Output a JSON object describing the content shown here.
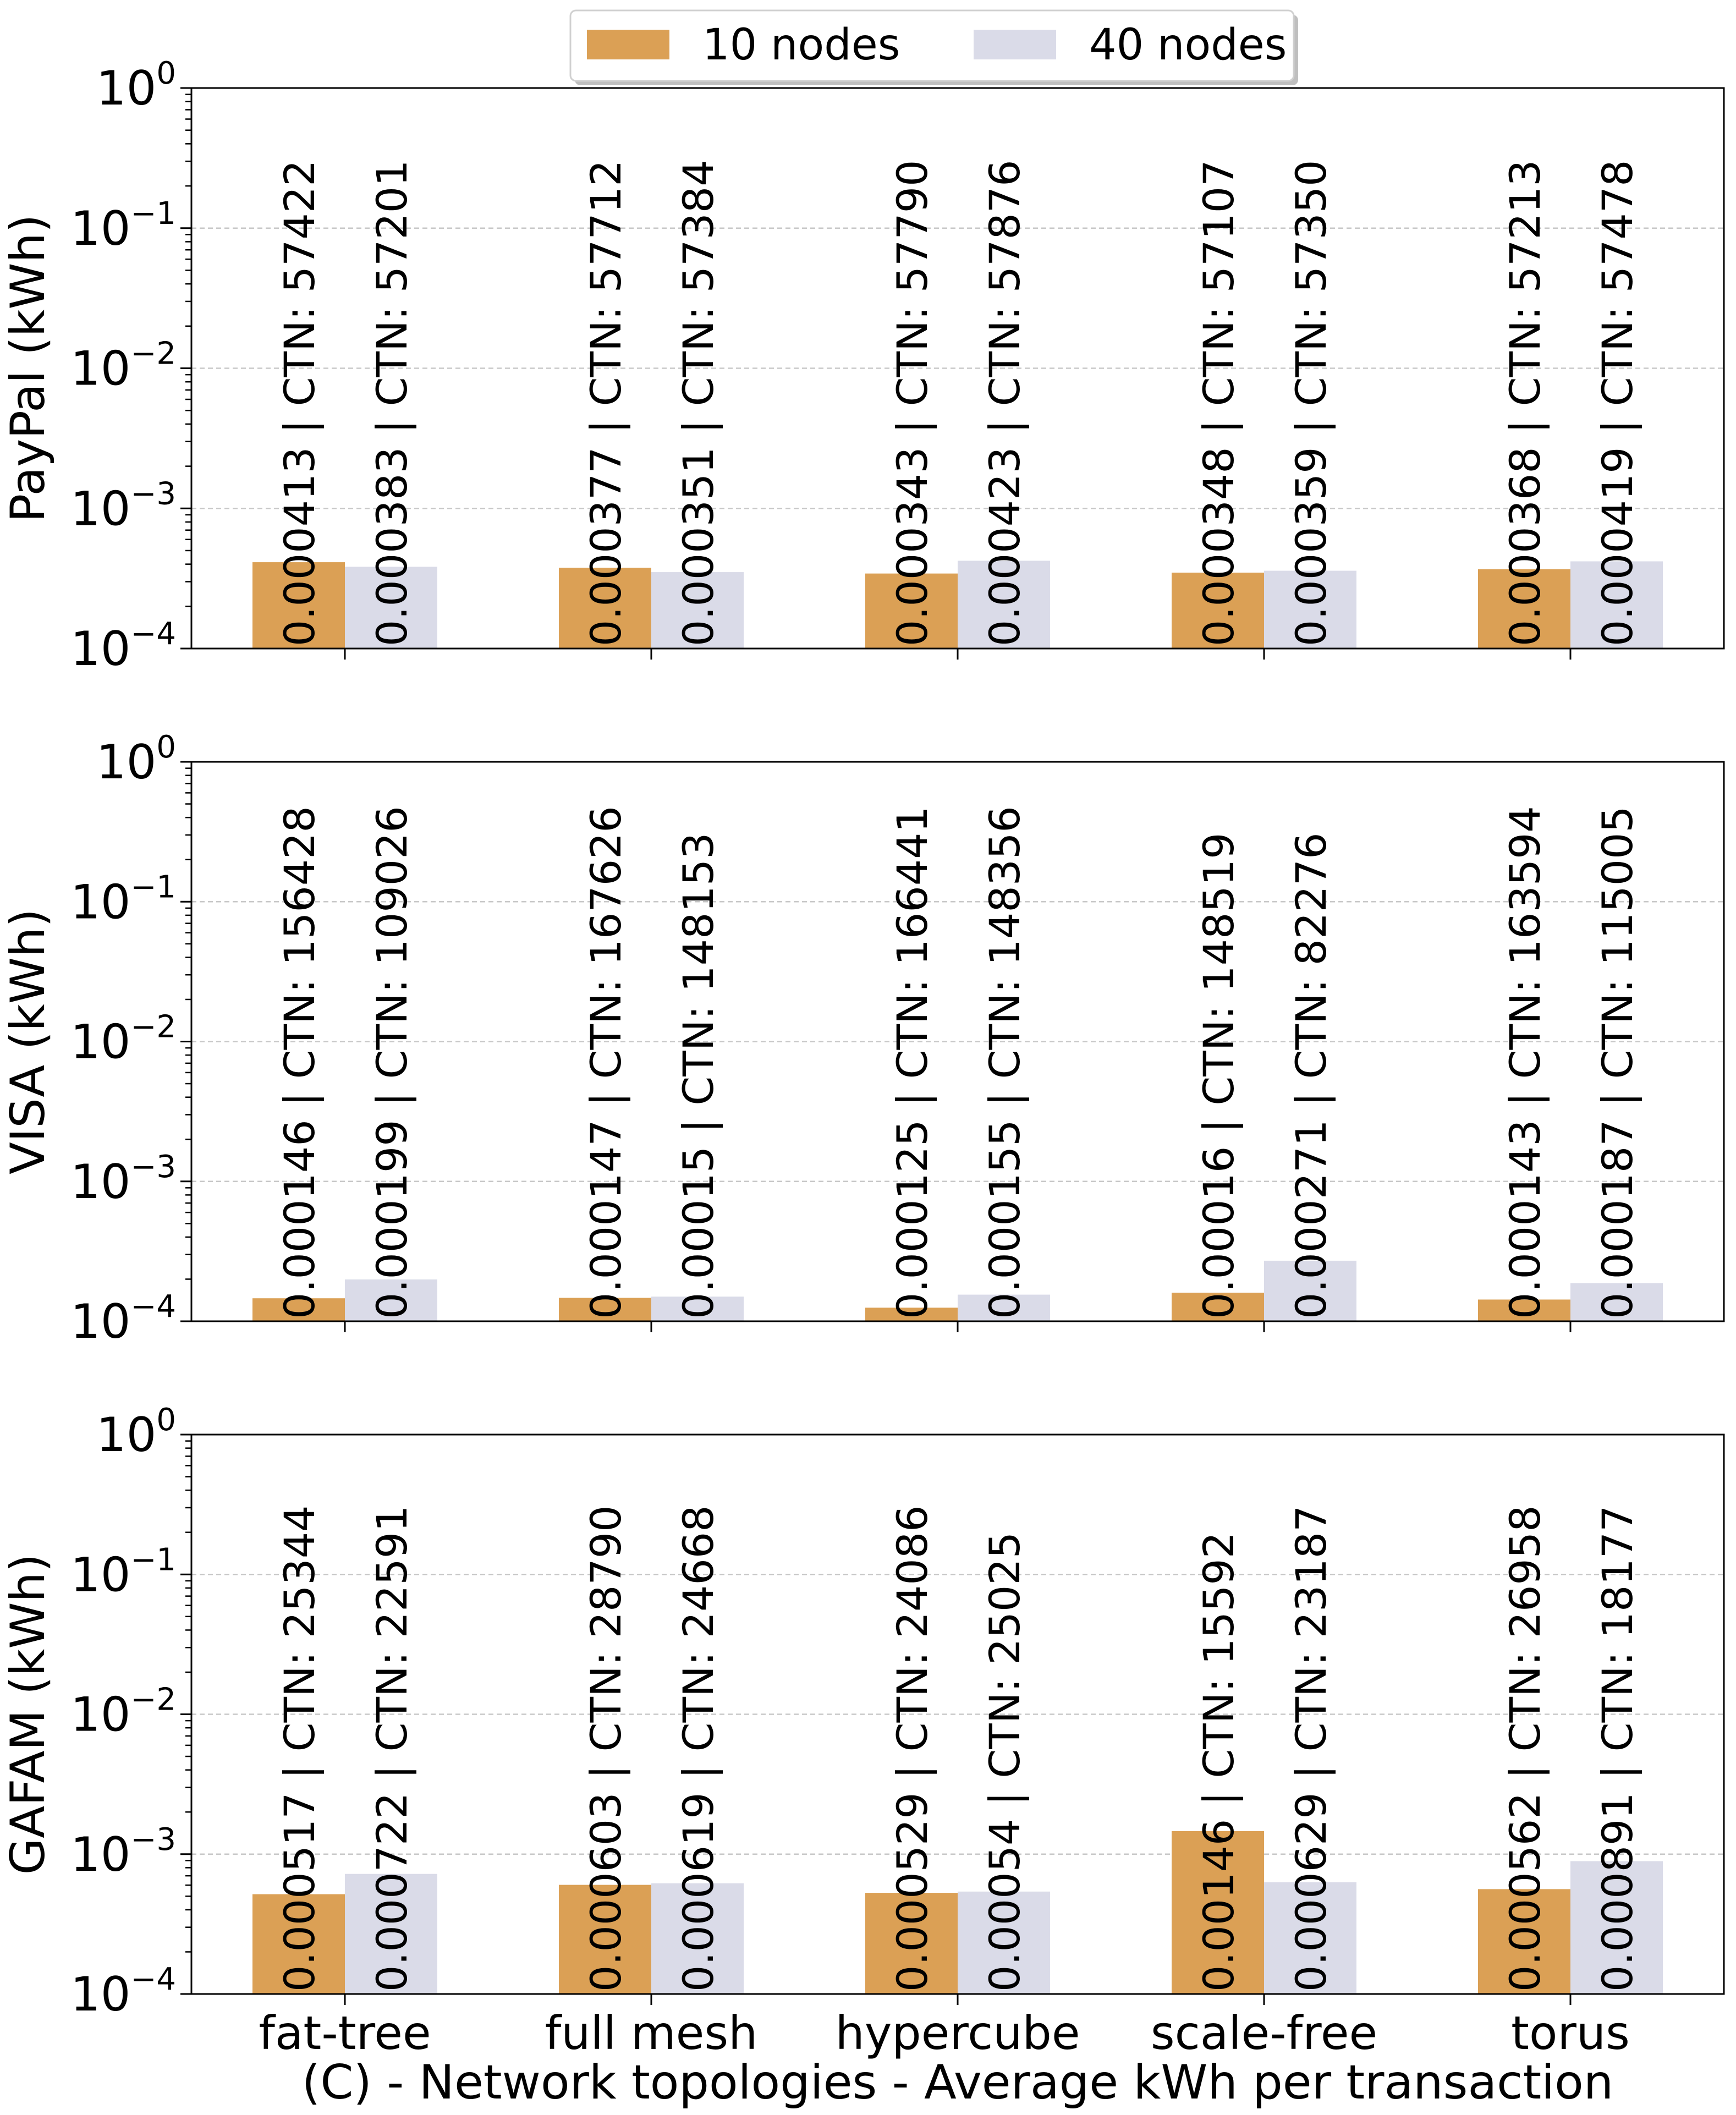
{
  "chart_data": {
    "type": "bar",
    "yscale": "log",
    "ylim": [
      0.0001,
      1
    ],
    "yticks": [
      {
        "base": "10",
        "exp": "0"
      },
      {
        "base": "10",
        "exp": "−1"
      },
      {
        "base": "10",
        "exp": "−2"
      },
      {
        "base": "10",
        "exp": "−3"
      },
      {
        "base": "10",
        "exp": "−4"
      }
    ],
    "grid": "horizontal-dashed",
    "legend_placement": "top-center",
    "categories": [
      "fat-tree",
      "full mesh",
      "hypercube",
      "scale-free",
      "torus"
    ],
    "xlabel": "(C) - Network topologies - Average kWh per transaction",
    "colors": {
      "10 nodes": "#dba055",
      "40 nodes": "#dadbe8"
    },
    "series_names": [
      "10 nodes",
      "40 nodes"
    ],
    "panels": [
      {
        "ylabel": "PayPal (kWh)",
        "series": [
          {
            "name": "10 nodes",
            "values": [
              0.000413,
              0.000377,
              0.000343,
              0.000348,
              0.000368
            ],
            "labels": [
              "0.000413 | CTN: 57422",
              "0.000377 | CTN: 57712",
              "0.000343 | CTN: 57790",
              "0.000348 | CTN: 57107",
              "0.000368 | CTN: 57213"
            ]
          },
          {
            "name": "40 nodes",
            "values": [
              0.000383,
              0.000351,
              0.000423,
              0.000359,
              0.000419
            ],
            "labels": [
              "0.000383 | CTN: 57201",
              "0.000351 | CTN: 57384",
              "0.000423 | CTN: 57876",
              "0.000359 | CTN: 57350",
              "0.000419 | CTN: 57478"
            ]
          }
        ]
      },
      {
        "ylabel": "VISA (kWh)",
        "series": [
          {
            "name": "10 nodes",
            "values": [
              0.000146,
              0.000147,
              0.000125,
              0.00016,
              0.000143
            ],
            "labels": [
              "0.000146 | CTN: 156428",
              "0.000147 | CTN: 167626",
              "0.000125 | CTN: 166441",
              "0.00016 | CTN: 148519",
              "0.000143 | CTN: 163594"
            ]
          },
          {
            "name": "40 nodes",
            "values": [
              0.000199,
              0.00015,
              0.000155,
              0.000271,
              0.000187
            ],
            "labels": [
              "0.000199 | CTN: 109026",
              "0.00015 | CTN: 148153",
              "0.000155 | CTN: 148356",
              "0.000271 | CTN: 82276",
              "0.000187 | CTN: 115005"
            ]
          }
        ]
      },
      {
        "ylabel": "GAFAM (kWh)",
        "series": [
          {
            "name": "10 nodes",
            "values": [
              0.000517,
              0.000603,
              0.000529,
              0.00146,
              0.000562
            ],
            "labels": [
              "0.000517 | CTN: 25344",
              "0.000603 | CTN: 28790",
              "0.000529 | CTN: 24086",
              "0.00146 | CTN: 15592",
              "0.000562 | CTN: 26958"
            ]
          },
          {
            "name": "40 nodes",
            "values": [
              0.000722,
              0.000619,
              0.00054,
              0.000629,
              0.000891
            ],
            "labels": [
              "0.000722 | CTN: 22591",
              "0.000619 | CTN: 24668",
              "0.00054 | CTN: 25025",
              "0.000629 | CTN: 23187",
              "0.000891 | CTN: 18177"
            ]
          }
        ]
      }
    ]
  }
}
